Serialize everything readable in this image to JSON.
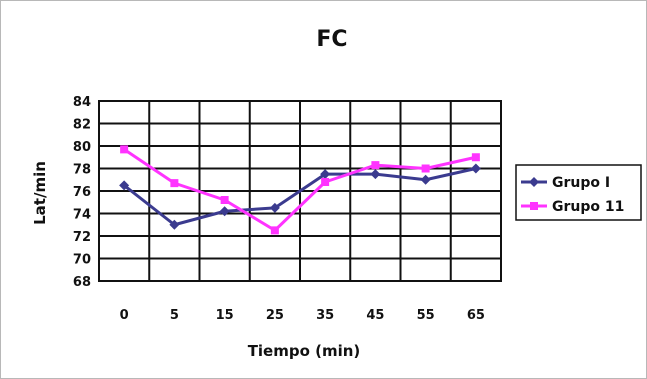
{
  "chart_data": {
    "type": "line",
    "title": "FC",
    "xlabel": "Tiempo (min)",
    "ylabel": "Lat/min",
    "categories": [
      "0",
      "5",
      "15",
      "25",
      "35",
      "45",
      "55",
      "65"
    ],
    "yticks": [
      "68",
      "70",
      "72",
      "74",
      "76",
      "78",
      "80",
      "82",
      "84"
    ],
    "ylim": [
      68,
      84
    ],
    "grid": true,
    "legend_position": "right",
    "series": [
      {
        "name": "Grupo I",
        "color": "#3b3b8f",
        "marker": "diamond",
        "values": [
          76.5,
          73,
          74.2,
          74.5,
          77.5,
          77.5,
          77,
          78
        ]
      },
      {
        "name": "Grupo 11",
        "color": "#ff33ff",
        "marker": "square",
        "values": [
          79.7,
          76.7,
          75.2,
          72.5,
          76.8,
          78.3,
          78,
          79
        ]
      }
    ]
  }
}
